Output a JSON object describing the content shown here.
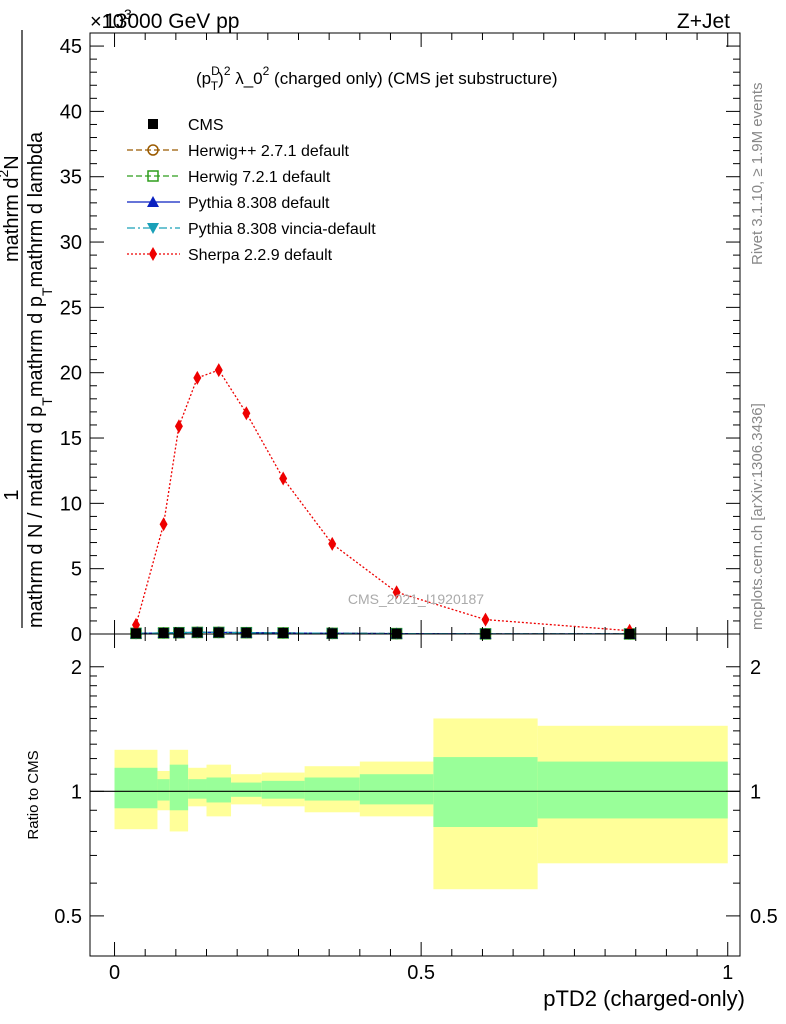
{
  "header": {
    "left": "13000 GeV pp",
    "right": "Z+Jet",
    "exponent": "×10",
    "exponent_power": "3"
  },
  "side_labels": {
    "rivet": "Rivet 3.1.10, ≥ 1.9M events",
    "mcplots": "mcplots.cern.ch [arXiv:1306.3436]"
  },
  "watermark": "CMS_2021_I1920187",
  "chart_data": [
    {
      "type": "line",
      "panel": "main",
      "title": "(p_T^D)^2 λ_0^2 (charged only) (CMS jet substructure)",
      "title_parts": {
        "base": "(p",
        "sup1": "D",
        "sub1": "T",
        "mid": ")",
        "sup2": "2",
        "lambda": " λ_0",
        "sup3": "2",
        "rest": " (charged only) (CMS jet substructure)"
      },
      "ylabel": "1 / mathrm d N / mathrm d p_T mathrm d p_T mathrm d lambda  mathrm d^2N",
      "ylabel_parts": {
        "one": "1",
        "denominator": "mathrm d N / mathrm d p",
        "denominator_sub": "T",
        "numerator_a": "mathrm d",
        "numerator_b": "N",
        "numerator_sup": "2",
        "numerator_c": "mathrm d p",
        "numerator_sub": "T",
        "numerator_d": "mathrm d p",
        "numerator_sub2": "T",
        "numerator_e": "mathrm d lambda"
      },
      "xlim": [
        -0.04,
        1.02
      ],
      "ylim": [
        0,
        46
      ],
      "y_unit_note": "values in units of 10^3",
      "y_ticks": [
        0,
        5,
        10,
        15,
        20,
        25,
        30,
        35,
        40,
        45
      ],
      "legend_position": "top-left",
      "series": [
        {
          "name": "CMS",
          "color": "#000000",
          "marker": "square-filled",
          "line": "none",
          "x": [
            0.035,
            0.08,
            0.105,
            0.135,
            0.17,
            0.215,
            0.275,
            0.355,
            0.46,
            0.605,
            0.84
          ],
          "y": [
            0.05,
            0.08,
            0.1,
            0.12,
            0.12,
            0.1,
            0.08,
            0.05,
            0.03,
            0.01,
            0.005
          ]
        },
        {
          "name": "Herwig++ 2.7.1 default",
          "color": "#9a5a00",
          "marker": "circle-open",
          "line": "dashed",
          "x": [
            0.035,
            0.08,
            0.105,
            0.135,
            0.17,
            0.215,
            0.275,
            0.355,
            0.46,
            0.605,
            0.84
          ],
          "y": [
            0.05,
            0.08,
            0.1,
            0.12,
            0.12,
            0.1,
            0.08,
            0.05,
            0.03,
            0.01,
            0.005
          ]
        },
        {
          "name": "Herwig 7.2.1 default",
          "color": "#2e9d1c",
          "marker": "square-open",
          "line": "dashed",
          "x": [
            0.035,
            0.08,
            0.105,
            0.135,
            0.17,
            0.215,
            0.275,
            0.355,
            0.46,
            0.605,
            0.84
          ],
          "y": [
            0.05,
            0.08,
            0.1,
            0.12,
            0.12,
            0.1,
            0.08,
            0.05,
            0.03,
            0.01,
            0.005
          ]
        },
        {
          "name": "Pythia 8.308 default",
          "color": "#0a20c0",
          "marker": "triangle-up",
          "line": "solid",
          "x": [
            0.035,
            0.08,
            0.105,
            0.135,
            0.17,
            0.215,
            0.275,
            0.355,
            0.46,
            0.605,
            0.84
          ],
          "y": [
            0.05,
            0.08,
            0.1,
            0.12,
            0.12,
            0.1,
            0.08,
            0.05,
            0.03,
            0.01,
            0.005
          ]
        },
        {
          "name": "Pythia 8.308 vincia-default",
          "color": "#1aa0b8",
          "marker": "triangle-down",
          "line": "dashdot",
          "x": [
            0.035,
            0.08,
            0.105,
            0.135,
            0.17,
            0.215,
            0.275,
            0.355,
            0.46,
            0.605,
            0.84
          ],
          "y": [
            0.05,
            0.08,
            0.1,
            0.12,
            0.12,
            0.1,
            0.08,
            0.05,
            0.03,
            0.01,
            0.005
          ]
        },
        {
          "name": "Sherpa 2.2.9 default",
          "color": "#ee0000",
          "marker": "diamond",
          "line": "dotted",
          "x": [
            0.035,
            0.08,
            0.105,
            0.135,
            0.17,
            0.215,
            0.275,
            0.355,
            0.46,
            0.605,
            0.84
          ],
          "y": [
            0.7,
            8.4,
            15.9,
            19.6,
            20.2,
            16.9,
            11.9,
            6.9,
            3.2,
            1.1,
            0.25
          ]
        }
      ]
    },
    {
      "type": "area",
      "panel": "ratio",
      "ylabel": "Ratio to CMS",
      "xlabel": "pTD2 (charged-only)",
      "xlim": [
        -0.04,
        1.02
      ],
      "ylim": [
        0.4,
        2.4
      ],
      "log_y": true,
      "y_ticks": [
        0.5,
        1,
        2
      ],
      "y_tick_labels": [
        "0.5",
        "1",
        "2"
      ],
      "x_ticks": [
        0,
        0.5,
        1
      ],
      "x_tick_labels": [
        "0",
        "0.5",
        "1"
      ],
      "reference_line": 1,
      "band_colors": {
        "inner": "#99ff99",
        "outer": "#ffff99"
      },
      "bins": [
        {
          "lo": 0.0,
          "hi": 0.07,
          "inner": [
            0.91,
            1.14
          ],
          "outer": [
            0.81,
            1.26
          ]
        },
        {
          "lo": 0.07,
          "hi": 0.09,
          "inner": [
            0.95,
            1.07
          ],
          "outer": [
            0.9,
            1.12
          ]
        },
        {
          "lo": 0.09,
          "hi": 0.12,
          "inner": [
            0.9,
            1.16
          ],
          "outer": [
            0.8,
            1.26
          ]
        },
        {
          "lo": 0.12,
          "hi": 0.15,
          "inner": [
            0.96,
            1.07
          ],
          "outer": [
            0.92,
            1.14
          ]
        },
        {
          "lo": 0.15,
          "hi": 0.19,
          "inner": [
            0.94,
            1.08
          ],
          "outer": [
            0.87,
            1.16
          ]
        },
        {
          "lo": 0.19,
          "hi": 0.24,
          "inner": [
            0.97,
            1.05
          ],
          "outer": [
            0.93,
            1.1
          ]
        },
        {
          "lo": 0.24,
          "hi": 0.31,
          "inner": [
            0.96,
            1.06
          ],
          "outer": [
            0.92,
            1.11
          ]
        },
        {
          "lo": 0.31,
          "hi": 0.4,
          "inner": [
            0.95,
            1.08
          ],
          "outer": [
            0.89,
            1.15
          ]
        },
        {
          "lo": 0.4,
          "hi": 0.52,
          "inner": [
            0.93,
            1.1
          ],
          "outer": [
            0.87,
            1.18
          ]
        },
        {
          "lo": 0.52,
          "hi": 0.69,
          "inner": [
            0.82,
            1.21
          ],
          "outer": [
            0.58,
            1.5
          ]
        },
        {
          "lo": 0.69,
          "hi": 1.0,
          "inner": [
            0.86,
            1.18
          ],
          "outer": [
            0.67,
            1.44
          ]
        }
      ]
    }
  ]
}
